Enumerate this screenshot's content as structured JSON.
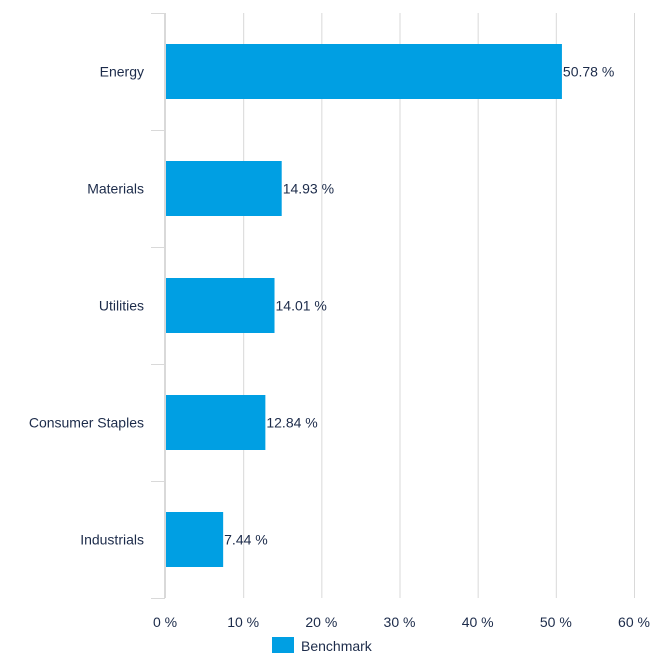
{
  "chart_data": {
    "type": "bar",
    "orientation": "horizontal",
    "categories": [
      "Energy",
      "Materials",
      "Utilities",
      "Consumer Staples",
      "Industrials"
    ],
    "series": [
      {
        "name": "Benchmark",
        "values": [
          50.78,
          14.93,
          14.01,
          12.84,
          7.44
        ],
        "labels": [
          "50.78 %",
          "14.93 %",
          "14.01 %",
          "12.84 %",
          "7.44 %"
        ]
      }
    ],
    "xlim": [
      0,
      60
    ],
    "xticks": [
      0,
      10,
      20,
      30,
      40,
      50,
      60
    ],
    "xtick_labels": [
      "0 %",
      "10 %",
      "20 %",
      "30 %",
      "40 %",
      "50 %",
      "60 %"
    ],
    "grid": true,
    "legend_position": "bottom",
    "colors": {
      "bar": "#009fe3",
      "grid": "#d9d9d9",
      "text": "#1c2b4a"
    }
  }
}
